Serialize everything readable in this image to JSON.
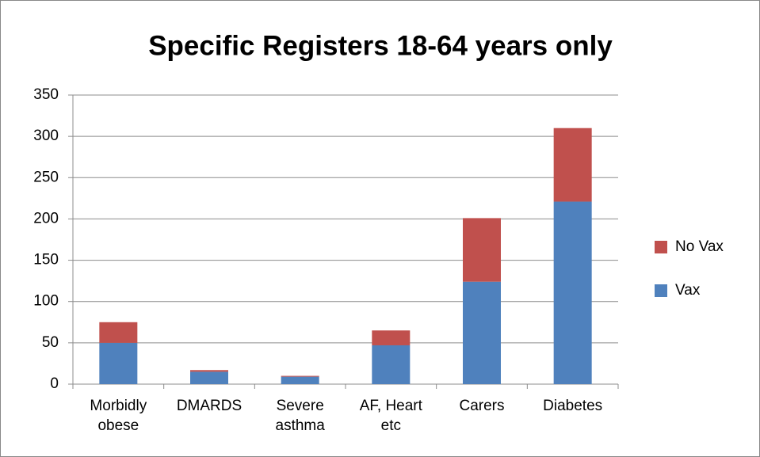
{
  "chart_data": {
    "type": "stacked_bar",
    "title": "Specific Registers 18-64 years only",
    "categories": [
      "Morbidly obese",
      "DMARDS",
      "Severe asthma",
      "AF, Heart etc",
      "Carers",
      "Diabetes"
    ],
    "series": [
      {
        "name": "Vax",
        "color": "#4f81bd",
        "values": [
          50,
          15,
          9,
          47,
          124,
          221
        ]
      },
      {
        "name": "No Vax",
        "color": "#c0504d",
        "values": [
          25,
          2,
          1,
          18,
          77,
          89
        ]
      }
    ],
    "ylim": [
      0,
      350
    ],
    "yticks": [
      0,
      50,
      100,
      150,
      200,
      250,
      300,
      350
    ],
    "grid": true,
    "legend": "right"
  }
}
